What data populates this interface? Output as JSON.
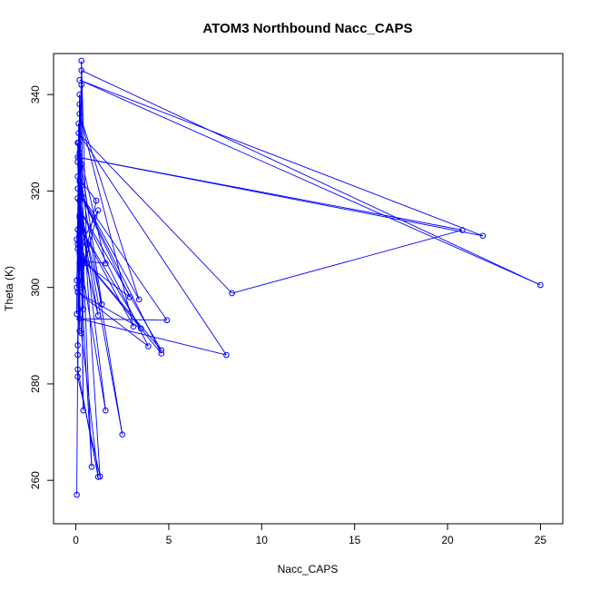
{
  "chart_data": {
    "type": "line",
    "title": "ATOM3 Northbound Nacc_CAPS",
    "xlabel": "Nacc_CAPS",
    "ylabel": "Theta (K)",
    "xlim": [
      -1.2,
      26.2
    ],
    "ylim": [
      251,
      348.5
    ],
    "xticks": [
      0,
      5,
      10,
      15,
      20,
      25
    ],
    "yticks": [
      260,
      280,
      300,
      320,
      340
    ],
    "grid": false,
    "marker": "open-circle",
    "line_color": "#0000ff",
    "series": [
      {
        "points": [
          [
            0.05,
            257.0
          ],
          [
            0.1,
            286.0
          ],
          [
            0.2,
            305.0
          ],
          [
            0.3,
            342.0
          ],
          [
            0.15,
            330.0
          ],
          [
            1.3,
            260.8
          ],
          [
            0.1,
            281.5
          ],
          [
            0.2,
            322.0
          ],
          [
            0.05,
            310.0
          ],
          [
            0.3,
            290.5
          ],
          [
            1.2,
            260.7
          ],
          [
            0.1,
            283.0
          ],
          [
            0.2,
            340.0
          ],
          [
            0.4,
            274.5
          ],
          [
            0.25,
            320.0
          ],
          [
            0.85,
            262.8
          ],
          [
            0.3,
            300.0
          ],
          [
            0.1,
            326.0
          ],
          [
            2.5,
            269.5
          ],
          [
            0.2,
            318.0
          ],
          [
            1.6,
            274.5
          ],
          [
            0.1,
            309.0
          ],
          [
            0.3,
            345.0
          ],
          [
            25.0,
            300.5
          ],
          [
            0.2,
            343.0
          ],
          [
            21.9,
            310.7
          ],
          [
            0.1,
            327.0
          ],
          [
            20.8,
            311.9
          ],
          [
            8.4,
            298.8
          ],
          [
            0.15,
            332.0
          ],
          [
            8.1,
            286.0
          ],
          [
            0.2,
            293.5
          ],
          [
            4.9,
            293.2
          ],
          [
            0.3,
            319.0
          ],
          [
            4.6,
            286.3
          ],
          [
            0.2,
            307.0
          ],
          [
            4.6,
            287.0
          ],
          [
            0.25,
            316.0
          ],
          [
            3.9,
            287.8
          ],
          [
            0.1,
            299.0
          ],
          [
            3.5,
            291.5
          ],
          [
            0.3,
            312.0
          ],
          [
            3.1,
            291.9
          ],
          [
            0.2,
            336.0
          ],
          [
            3.4,
            297.5
          ],
          [
            0.1,
            320.5
          ],
          [
            2.9,
            298.0
          ],
          [
            0.3,
            305.5
          ],
          [
            1.6,
            305.0
          ],
          [
            0.2,
            328.0
          ],
          [
            1.4,
            296.5
          ],
          [
            0.1,
            318.5
          ],
          [
            1.2,
            294.2
          ],
          [
            0.3,
            309.0
          ],
          [
            1.2,
            316.0
          ],
          [
            0.2,
            300.5
          ],
          [
            1.1,
            318.0
          ],
          [
            0.1,
            323.0
          ],
          [
            0.6,
            305.0
          ],
          [
            0.3,
            347.0
          ],
          [
            0.4,
            295.5
          ],
          [
            0.2,
            327.0
          ],
          [
            0.1,
            312.0
          ],
          [
            0.3,
            325.5
          ],
          [
            0.05,
            301.5
          ],
          [
            0.2,
            315.0
          ],
          [
            0.1,
            288.0
          ],
          [
            0.3,
            321.0
          ],
          [
            0.15,
            334.0
          ],
          [
            0.05,
            294.5
          ],
          [
            0.2,
            338.0
          ],
          [
            0.1,
            308.0
          ],
          [
            0.3,
            304.0
          ],
          [
            0.2,
            314.5
          ],
          [
            0.05,
            300.0
          ],
          [
            0.3,
            306.0
          ],
          [
            0.1,
            330.0
          ],
          [
            0.2,
            291.0
          ],
          [
            0.25,
            319.5
          ]
        ]
      }
    ]
  }
}
